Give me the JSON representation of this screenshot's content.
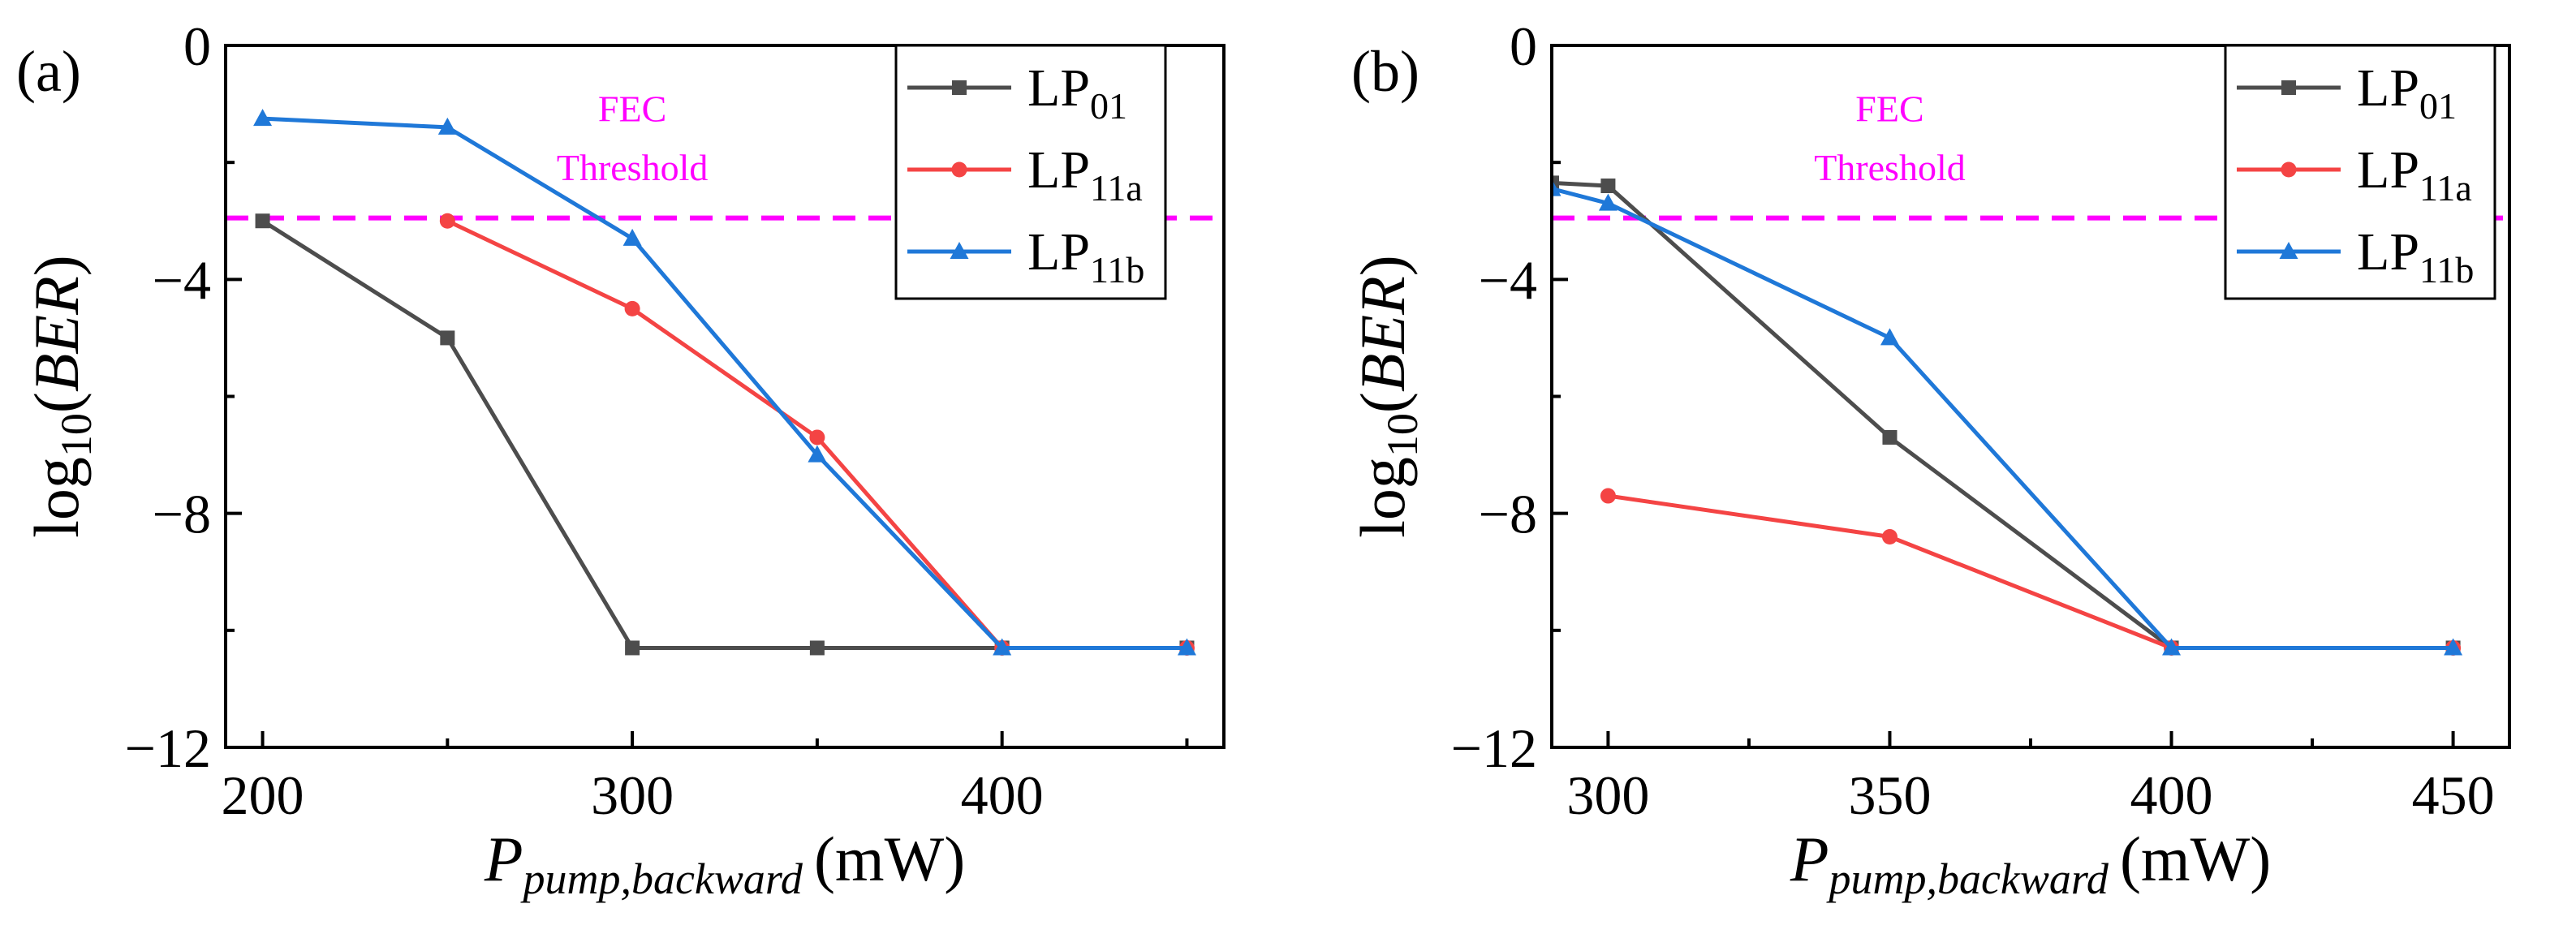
{
  "chart_data": [
    {
      "panel": "(a)",
      "type": "line",
      "xlabel": {
        "main": "P",
        "sub": "pump,backward",
        "unit": "(mW)"
      },
      "ylabel": {
        "pre": "log",
        "sub": "10",
        "open": "(",
        "italic": "BER",
        "close": ")"
      },
      "xlim": [
        190,
        460
      ],
      "ylim": [
        -12,
        0
      ],
      "xticks": [
        200,
        300,
        400
      ],
      "xtick_labels": [
        "200",
        "300",
        "400"
      ],
      "yticks": [
        0,
        -4,
        -8,
        -12
      ],
      "ytick_labels": [
        "0",
        "−4",
        "−8",
        "−12"
      ],
      "threshold": {
        "value": -2.95,
        "x_range": [
          190,
          460
        ],
        "color": "#ff00ff",
        "label_lines": [
          "FEC",
          "Threshold"
        ],
        "label_x": 300,
        "label_y": [
          -1.3,
          -2.3
        ]
      },
      "legend": {
        "placement": "top-right"
      },
      "series": [
        {
          "name_main": "LP",
          "name_sub": "01",
          "color": "#4d4d4d",
          "marker": "square",
          "x": [
            200,
            250,
            300,
            350,
            400,
            450
          ],
          "y": [
            -3.0,
            -5.0,
            -10.3,
            -10.3,
            -10.3,
            -10.3
          ]
        },
        {
          "name_main": "LP",
          "name_sub": "11a",
          "color": "#f44444",
          "marker": "circle",
          "x": [
            250,
            300,
            350,
            400,
            450
          ],
          "y": [
            -3.0,
            -4.5,
            -6.7,
            -10.3,
            -10.3
          ]
        },
        {
          "name_main": "LP",
          "name_sub": "11b",
          "color": "#1f78d8",
          "marker": "triangle",
          "x": [
            200,
            250,
            300,
            350,
            400,
            450
          ],
          "y": [
            -1.25,
            -1.4,
            -3.3,
            -7.0,
            -10.3,
            -10.3
          ]
        }
      ]
    },
    {
      "panel": "(b)",
      "type": "line",
      "xlabel": {
        "main": "P",
        "sub": "pump,backward",
        "unit": "(mW)"
      },
      "ylabel": {
        "pre": "log",
        "sub": "10",
        "open": "(",
        "italic": "BER",
        "close": ")"
      },
      "xlim": [
        290,
        460
      ],
      "ylim": [
        -12,
        0
      ],
      "xticks": [
        300,
        350,
        400,
        450
      ],
      "xtick_labels": [
        "300",
        "350",
        "400",
        "450"
      ],
      "yticks": [
        0,
        -4,
        -8,
        -12
      ],
      "ytick_labels": [
        "0",
        "−4",
        "−8",
        "−12"
      ],
      "threshold": {
        "value": -2.95,
        "x_range": [
          290,
          460
        ],
        "color": "#ff00ff",
        "label_lines": [
          "FEC",
          "Threshold"
        ],
        "label_x": 350,
        "label_y": [
          -1.3,
          -2.3
        ]
      },
      "legend": {
        "placement": "top-right"
      },
      "series": [
        {
          "name_main": "LP",
          "name_sub": "01",
          "color": "#4d4d4d",
          "marker": "square",
          "x": [
            290,
            300,
            350,
            400,
            450
          ],
          "y": [
            -2.35,
            -2.4,
            -6.7,
            -10.3,
            -10.3
          ]
        },
        {
          "name_main": "LP",
          "name_sub": "11a",
          "color": "#f44444",
          "marker": "circle",
          "x": [
            300,
            350,
            400,
            450
          ],
          "y": [
            -7.7,
            -8.4,
            -10.3,
            -10.3
          ]
        },
        {
          "name_main": "LP",
          "name_sub": "11b",
          "color": "#1f78d8",
          "marker": "triangle",
          "x": [
            290,
            300,
            350,
            400,
            450
          ],
          "y": [
            -2.45,
            -2.7,
            -5.0,
            -10.3,
            -10.3
          ]
        }
      ]
    }
  ]
}
